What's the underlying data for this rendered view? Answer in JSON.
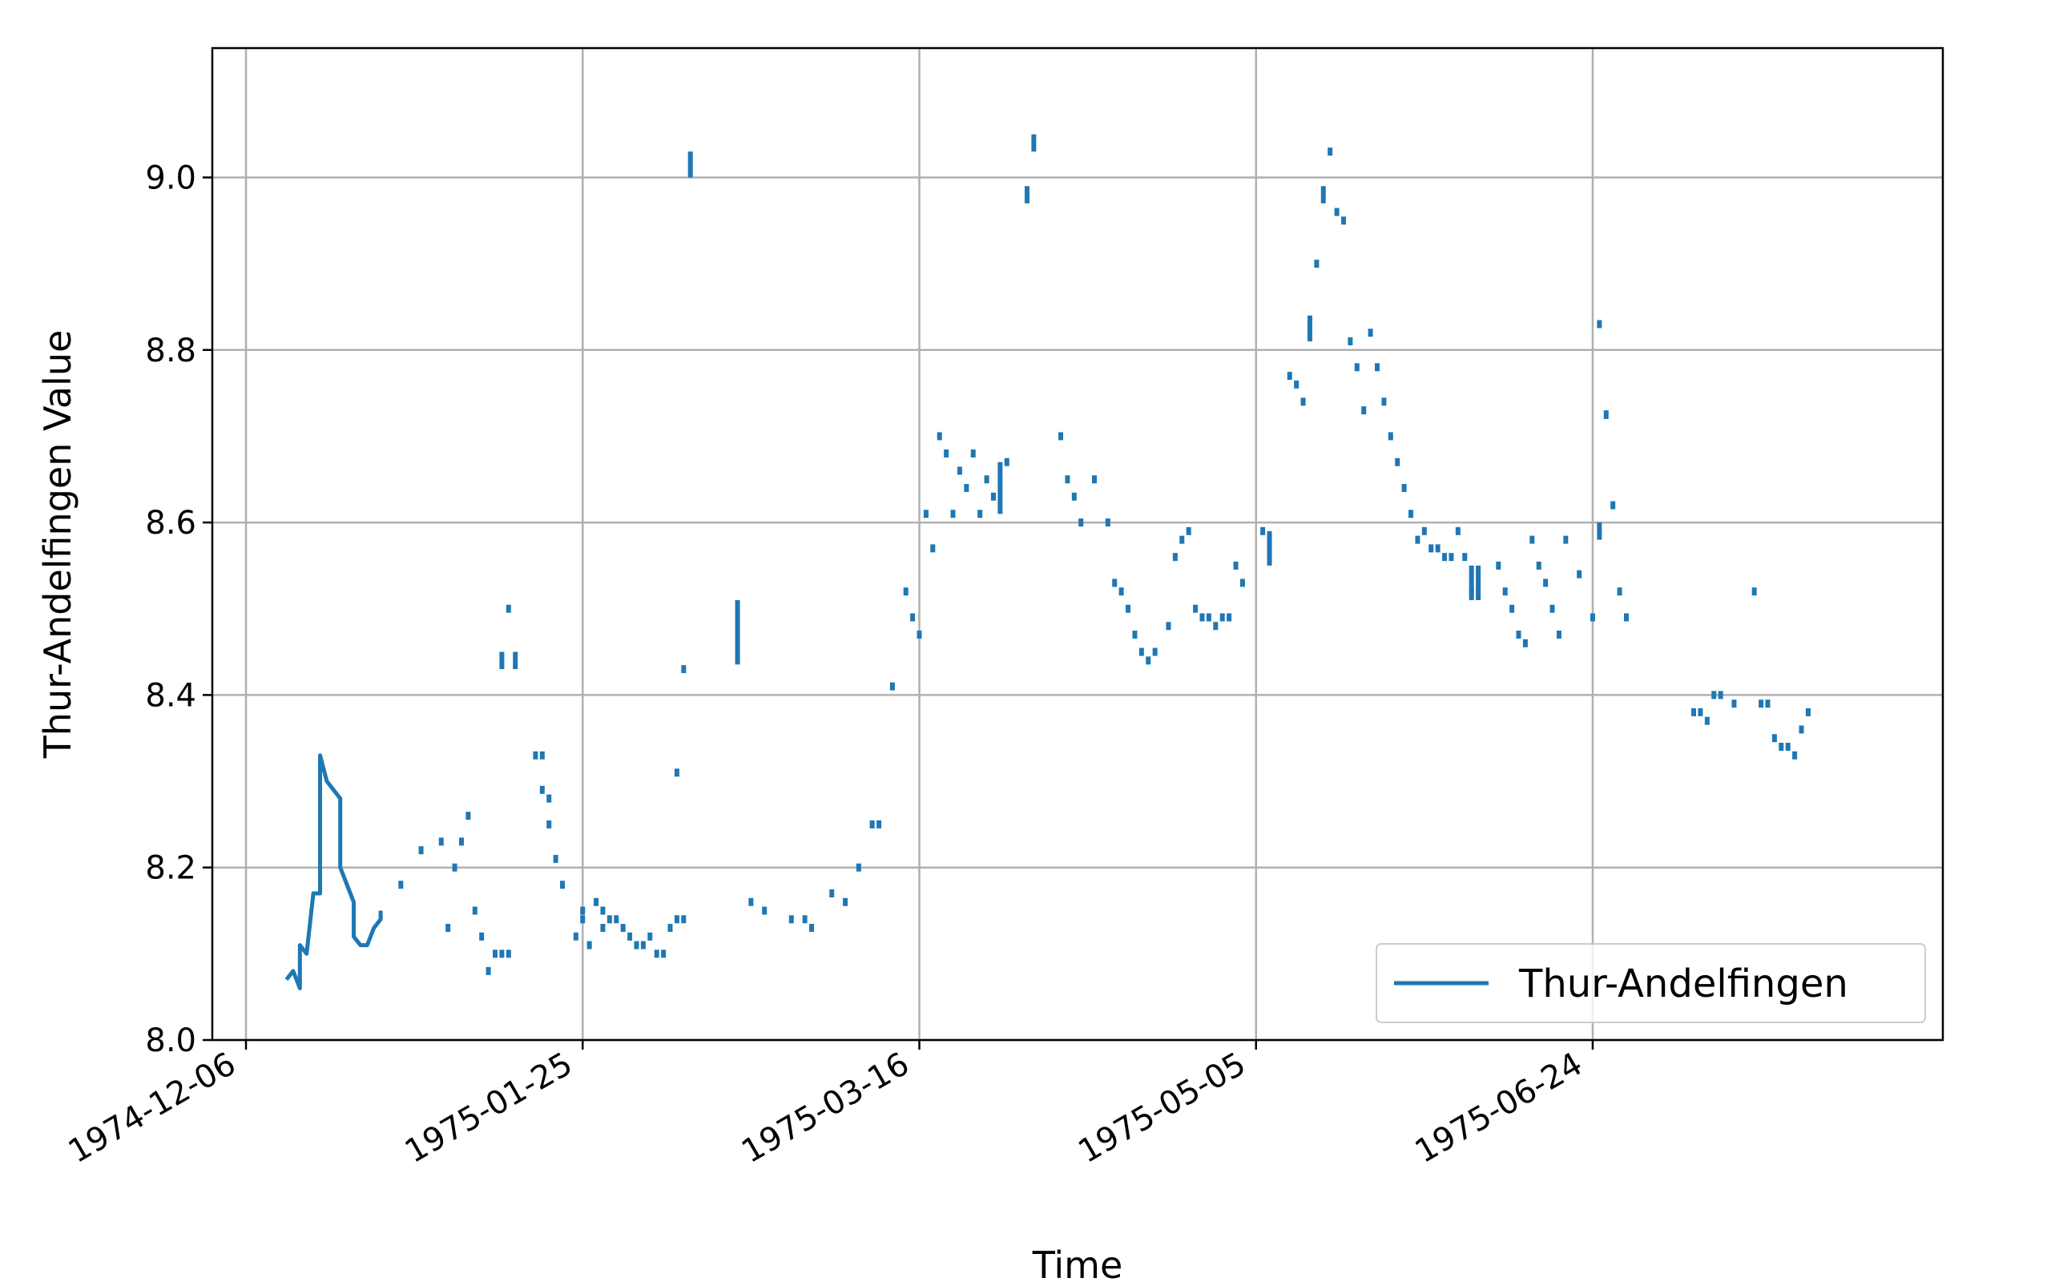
{
  "chart_data": {
    "type": "line",
    "title": "",
    "xlabel": "Time",
    "ylabel": "Thur-Andelfingen Value",
    "grid": true,
    "legend": {
      "placement": "lower-right",
      "entries": [
        "Thur-Andelfingen"
      ]
    },
    "colors": {
      "series": "#1f77b4",
      "grid": "#b0b0b0",
      "axis": "#000000"
    },
    "xlim": [
      "1974-12-01",
      "1975-08-15"
    ],
    "ylim": [
      8.0,
      9.15
    ],
    "x_ticks": [
      "1974-12-06",
      "1975-01-25",
      "1975-03-16",
      "1975-05-05",
      "1975-06-24"
    ],
    "y_ticks": [
      "8.0",
      "8.2",
      "8.4",
      "8.6",
      "8.8",
      "9.0"
    ],
    "series": [
      {
        "name": "Thur-Andelfingen",
        "style": "solid",
        "points": [
          [
            "1974-12-12",
            8.07
          ],
          [
            "1974-12-13",
            8.08
          ],
          [
            "1974-12-14",
            8.06
          ],
          [
            "1974-12-14",
            8.11
          ],
          [
            "1974-12-15",
            8.1
          ],
          [
            "1974-12-16",
            8.17
          ],
          [
            "1974-12-17",
            8.17
          ],
          [
            "1974-12-17",
            8.33
          ],
          [
            "1974-12-18",
            8.3
          ],
          [
            "1974-12-19",
            8.29
          ],
          [
            "1974-12-20",
            8.28
          ],
          [
            "1974-12-20",
            8.2
          ],
          [
            "1974-12-21",
            8.18
          ],
          [
            "1974-12-22",
            8.16
          ],
          [
            "1974-12-22",
            8.12
          ],
          [
            "1974-12-23",
            8.11
          ],
          [
            "1974-12-24",
            8.11
          ],
          [
            "1974-12-25",
            8.13
          ],
          [
            "1974-12-26",
            8.14
          ],
          [
            "1974-12-26",
            8.15
          ]
        ],
        "segments": [
          [
            [
              "1975-01-13",
              8.43
            ],
            [
              "1975-01-13",
              8.45
            ]
          ],
          [
            [
              "1975-01-15",
              8.43
            ],
            [
              "1975-01-15",
              8.45
            ]
          ],
          [
            [
              "1975-02-10",
              9.0
            ],
            [
              "1975-02-10",
              9.03
            ]
          ],
          [
            [
              "1975-02-17",
              8.44
            ],
            [
              "1975-02-17",
              8.51
            ]
          ],
          [
            [
              "1975-03-28",
              8.61
            ],
            [
              "1975-03-28",
              8.67
            ]
          ],
          [
            [
              "1975-04-01",
              8.97
            ],
            [
              "1975-04-01",
              8.99
            ]
          ],
          [
            [
              "1975-04-02",
              9.03
            ],
            [
              "1975-04-02",
              9.05
            ]
          ],
          [
            [
              "1975-05-07",
              8.55
            ],
            [
              "1975-05-07",
              8.59
            ]
          ],
          [
            [
              "1975-05-13",
              8.81
            ],
            [
              "1975-05-13",
              8.84
            ]
          ],
          [
            [
              "1975-05-15",
              8.97
            ],
            [
              "1975-05-15",
              8.99
            ]
          ],
          [
            [
              "1975-06-06",
              8.51
            ],
            [
              "1975-06-06",
              8.55
            ]
          ],
          [
            [
              "1975-06-07",
              8.51
            ],
            [
              "1975-06-07",
              8.55
            ]
          ],
          [
            [
              "1975-06-25",
              8.58
            ],
            [
              "1975-06-25",
              8.6
            ]
          ],
          [
            [
              "1975-06-26",
              8.72
            ],
            [
              "1975-06-26",
              8.73
            ]
          ]
        ],
        "markers": [
          [
            "1974-12-29",
            8.18
          ],
          [
            "1975-01-01",
            8.22
          ],
          [
            "1975-01-04",
            8.23
          ],
          [
            "1975-01-05",
            8.13
          ],
          [
            "1975-01-06",
            8.2
          ],
          [
            "1975-01-07",
            8.23
          ],
          [
            "1975-01-08",
            8.26
          ],
          [
            "1975-01-09",
            8.15
          ],
          [
            "1975-01-10",
            8.12
          ],
          [
            "1975-01-11",
            8.08
          ],
          [
            "1975-01-12",
            8.1
          ],
          [
            "1975-01-13",
            8.1
          ],
          [
            "1975-01-14",
            8.5
          ],
          [
            "1975-01-14",
            8.1
          ],
          [
            "1975-01-18",
            8.33
          ],
          [
            "1975-01-19",
            8.33
          ],
          [
            "1975-01-19",
            8.29
          ],
          [
            "1975-01-20",
            8.28
          ],
          [
            "1975-01-20",
            8.25
          ],
          [
            "1975-01-21",
            8.21
          ],
          [
            "1975-01-22",
            8.18
          ],
          [
            "1975-01-24",
            8.12
          ],
          [
            "1975-01-25",
            8.15
          ],
          [
            "1975-01-25",
            8.14
          ],
          [
            "1975-01-26",
            8.11
          ],
          [
            "1975-01-27",
            8.16
          ],
          [
            "1975-01-28",
            8.15
          ],
          [
            "1975-01-28",
            8.13
          ],
          [
            "1975-01-29",
            8.14
          ],
          [
            "1975-01-30",
            8.14
          ],
          [
            "1975-01-31",
            8.13
          ],
          [
            "1975-02-01",
            8.12
          ],
          [
            "1975-02-02",
            8.11
          ],
          [
            "1975-02-03",
            8.11
          ],
          [
            "1975-02-04",
            8.12
          ],
          [
            "1975-02-05",
            8.1
          ],
          [
            "1975-02-06",
            8.1
          ],
          [
            "1975-02-07",
            8.13
          ],
          [
            "1975-02-08",
            8.14
          ],
          [
            "1975-02-09",
            8.14
          ],
          [
            "1975-02-08",
            8.31
          ],
          [
            "1975-02-09",
            8.43
          ],
          [
            "1975-02-17",
            8.44
          ],
          [
            "1975-02-19",
            8.16
          ],
          [
            "1975-02-21",
            8.15
          ],
          [
            "1975-02-25",
            8.14
          ],
          [
            "1975-02-27",
            8.14
          ],
          [
            "1975-02-28",
            8.13
          ],
          [
            "1975-03-03",
            8.17
          ],
          [
            "1975-03-05",
            8.16
          ],
          [
            "1975-03-07",
            8.2
          ],
          [
            "1975-03-09",
            8.25
          ],
          [
            "1975-03-10",
            8.25
          ],
          [
            "1975-03-12",
            8.41
          ],
          [
            "1975-03-14",
            8.52
          ],
          [
            "1975-03-15",
            8.49
          ],
          [
            "1975-03-16",
            8.47
          ],
          [
            "1975-03-17",
            8.61
          ],
          [
            "1975-03-18",
            8.57
          ],
          [
            "1975-03-19",
            8.7
          ],
          [
            "1975-03-20",
            8.68
          ],
          [
            "1975-03-21",
            8.61
          ],
          [
            "1975-03-22",
            8.66
          ],
          [
            "1975-03-23",
            8.64
          ],
          [
            "1975-03-24",
            8.68
          ],
          [
            "1975-03-25",
            8.61
          ],
          [
            "1975-03-26",
            8.65
          ],
          [
            "1975-03-27",
            8.63
          ],
          [
            "1975-03-29",
            8.67
          ],
          [
            "1975-04-06",
            8.7
          ],
          [
            "1975-04-07",
            8.65
          ],
          [
            "1975-04-08",
            8.63
          ],
          [
            "1975-04-09",
            8.6
          ],
          [
            "1975-04-11",
            8.65
          ],
          [
            "1975-04-13",
            8.6
          ],
          [
            "1975-04-14",
            8.53
          ],
          [
            "1975-04-15",
            8.52
          ],
          [
            "1975-04-16",
            8.5
          ],
          [
            "1975-04-17",
            8.47
          ],
          [
            "1975-04-18",
            8.45
          ],
          [
            "1975-04-19",
            8.44
          ],
          [
            "1975-04-20",
            8.45
          ],
          [
            "1975-04-22",
            8.48
          ],
          [
            "1975-04-23",
            8.56
          ],
          [
            "1975-04-24",
            8.58
          ],
          [
            "1975-04-25",
            8.59
          ],
          [
            "1975-04-26",
            8.5
          ],
          [
            "1975-04-27",
            8.49
          ],
          [
            "1975-04-28",
            8.49
          ],
          [
            "1975-04-29",
            8.48
          ],
          [
            "1975-04-30",
            8.49
          ],
          [
            "1975-05-01",
            8.49
          ],
          [
            "1975-05-02",
            8.55
          ],
          [
            "1975-05-03",
            8.53
          ],
          [
            "1975-05-06",
            8.59
          ],
          [
            "1975-05-10",
            8.77
          ],
          [
            "1975-05-11",
            8.76
          ],
          [
            "1975-05-12",
            8.74
          ],
          [
            "1975-05-14",
            8.9
          ],
          [
            "1975-05-16",
            9.03
          ],
          [
            "1975-05-17",
            8.96
          ],
          [
            "1975-05-18",
            8.95
          ],
          [
            "1975-05-19",
            8.81
          ],
          [
            "1975-05-20",
            8.78
          ],
          [
            "1975-05-21",
            8.73
          ],
          [
            "1975-05-22",
            8.82
          ],
          [
            "1975-05-23",
            8.78
          ],
          [
            "1975-05-24",
            8.74
          ],
          [
            "1975-05-25",
            8.7
          ],
          [
            "1975-05-26",
            8.67
          ],
          [
            "1975-05-27",
            8.64
          ],
          [
            "1975-05-28",
            8.61
          ],
          [
            "1975-05-29",
            8.58
          ],
          [
            "1975-05-30",
            8.59
          ],
          [
            "1975-05-31",
            8.57
          ],
          [
            "1975-06-01",
            8.57
          ],
          [
            "1975-06-02",
            8.56
          ],
          [
            "1975-06-03",
            8.56
          ],
          [
            "1975-06-04",
            8.59
          ],
          [
            "1975-06-05",
            8.56
          ],
          [
            "1975-06-06",
            8.52
          ],
          [
            "1975-06-10",
            8.55
          ],
          [
            "1975-06-11",
            8.52
          ],
          [
            "1975-06-12",
            8.5
          ],
          [
            "1975-06-13",
            8.47
          ],
          [
            "1975-06-14",
            8.46
          ],
          [
            "1975-06-15",
            8.58
          ],
          [
            "1975-06-16",
            8.55
          ],
          [
            "1975-06-17",
            8.53
          ],
          [
            "1975-06-18",
            8.5
          ],
          [
            "1975-06-19",
            8.47
          ],
          [
            "1975-06-20",
            8.58
          ],
          [
            "1975-06-22",
            8.54
          ],
          [
            "1975-06-24",
            8.49
          ],
          [
            "1975-06-25",
            8.83
          ],
          [
            "1975-06-27",
            8.62
          ],
          [
            "1975-06-28",
            8.52
          ],
          [
            "1975-06-29",
            8.49
          ],
          [
            "1975-07-09",
            8.38
          ],
          [
            "1975-07-10",
            8.38
          ],
          [
            "1975-07-11",
            8.37
          ],
          [
            "1975-07-12",
            8.4
          ],
          [
            "1975-07-13",
            8.4
          ],
          [
            "1975-07-15",
            8.39
          ],
          [
            "1975-07-18",
            8.52
          ],
          [
            "1975-07-19",
            8.39
          ],
          [
            "1975-07-20",
            8.39
          ],
          [
            "1975-07-21",
            8.35
          ],
          [
            "1975-07-22",
            8.34
          ],
          [
            "1975-07-23",
            8.34
          ],
          [
            "1975-07-24",
            8.33
          ],
          [
            "1975-07-25",
            8.36
          ],
          [
            "1975-07-26",
            8.38
          ]
        ]
      }
    ]
  }
}
